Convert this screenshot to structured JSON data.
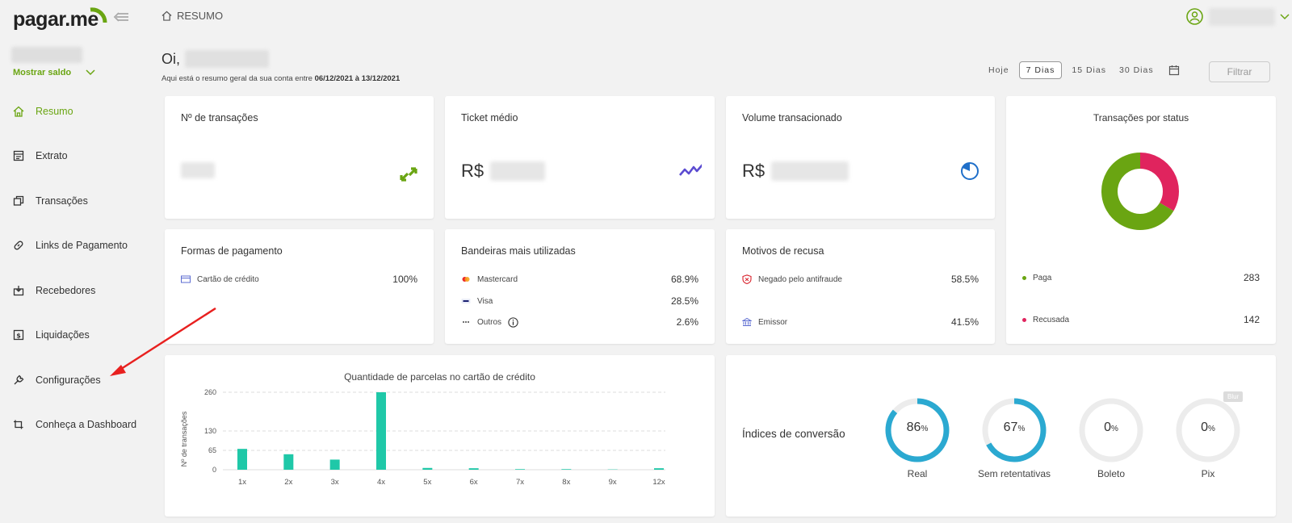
{
  "brand": {
    "logo_text": "pagar.me",
    "accent": "#6aa512"
  },
  "sidebar": {
    "show_balance_label": "Mostrar saldo",
    "items": [
      {
        "label": "Resumo",
        "icon": "home-icon",
        "active": true
      },
      {
        "label": "Extrato",
        "icon": "statement-icon",
        "active": false
      },
      {
        "label": "Transações",
        "icon": "transactions-icon",
        "active": false
      },
      {
        "label": "Links de Pagamento",
        "icon": "link-icon",
        "active": false
      },
      {
        "label": "Recebedores",
        "icon": "recipients-icon",
        "active": false
      },
      {
        "label": "Liquidações",
        "icon": "settlements-icon",
        "active": false
      },
      {
        "label": "Configurações",
        "icon": "wrench-icon",
        "active": false
      },
      {
        "label": "Conheça a Dashboard",
        "icon": "tour-icon",
        "active": false
      }
    ]
  },
  "header": {
    "breadcrumb": "RESUMO"
  },
  "greeting": {
    "hello": "Oi,",
    "summary_prefix": "Aqui está o resumo geral da sua conta entre ",
    "date_range": "06/12/2021 à 13/12/2021"
  },
  "range_filter": {
    "options": [
      "Hoje",
      "7 Dias",
      "15 Dias",
      "30 Dias"
    ],
    "selected": "7 Dias",
    "filter_label": "Filtrar"
  },
  "cards": {
    "transactions_count": {
      "title": "Nº de transações"
    },
    "average_ticket": {
      "title": "Ticket médio",
      "currency": "R$"
    },
    "volume": {
      "title": "Volume transacionado",
      "currency": "R$"
    },
    "status": {
      "title": "Transações por status",
      "items": [
        {
          "label": "Paga",
          "value": 283,
          "color": "#6aa512"
        },
        {
          "label": "Recusada",
          "value": 142,
          "color": "#e0245e"
        }
      ]
    },
    "payment_methods": {
      "title": "Formas de pagamento",
      "items": [
        {
          "label": "Cartão de crédito",
          "value": "100%"
        }
      ]
    },
    "brands": {
      "title": "Bandeiras mais utilizadas",
      "items": [
        {
          "label": "Mastercard",
          "value": "68.9%"
        },
        {
          "label": "Visa",
          "value": "28.5%"
        },
        {
          "label": "Outros",
          "value": "2.6%"
        }
      ]
    },
    "refusal": {
      "title": "Motivos de recusa",
      "items": [
        {
          "label": "Negado pelo antifraude",
          "value": "58.5%"
        },
        {
          "label": "Emissor",
          "value": "41.5%"
        }
      ]
    },
    "conversion": {
      "title": "Índices de conversão",
      "blur_tag": "Blur",
      "rings": [
        {
          "label": "Real",
          "value": 86
        },
        {
          "label": "Sem retentativas",
          "value": 67
        },
        {
          "label": "Boleto",
          "value": 0
        },
        {
          "label": "Pix",
          "value": 0
        }
      ],
      "ring_color": "#2ba9d1"
    }
  },
  "chart_data": {
    "type": "bar",
    "title": "Quantidade de parcelas no cartão de crédito",
    "ylabel": "Nº de transações",
    "xlabel": "",
    "categories": [
      "1x",
      "2x",
      "3x",
      "4x",
      "5x",
      "6x",
      "7x",
      "8x",
      "9x",
      "12x"
    ],
    "values": [
      70,
      52,
      34,
      260,
      6,
      5,
      2,
      2,
      1,
      5
    ],
    "yticks": [
      0,
      65,
      130,
      260
    ],
    "ylim": [
      0,
      260
    ],
    "color": "#1fc8a8",
    "grid": true
  }
}
